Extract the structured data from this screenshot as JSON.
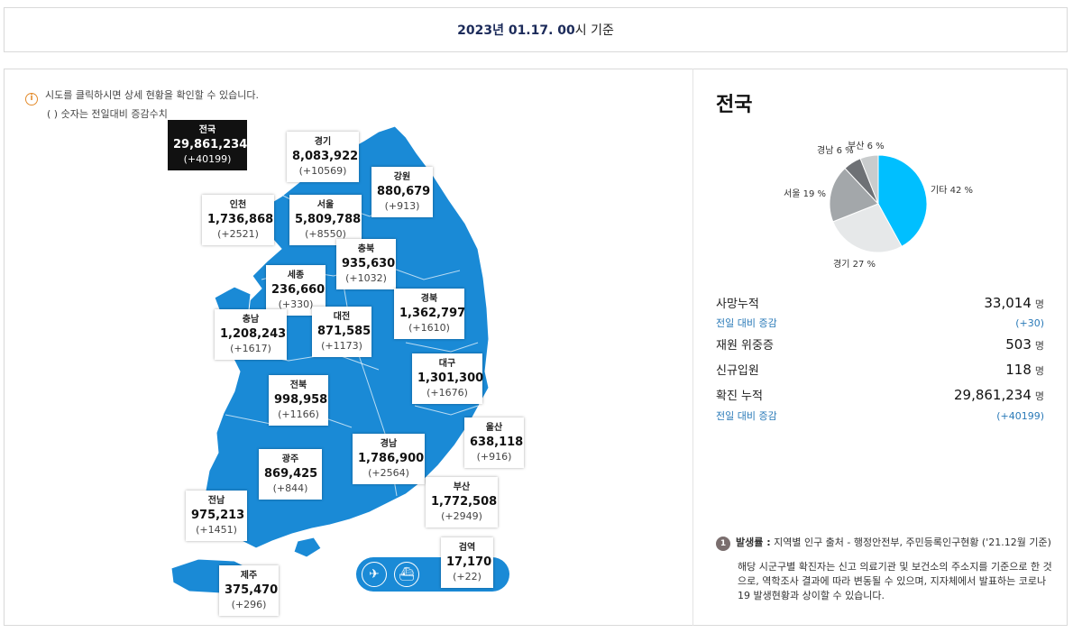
{
  "header": {
    "date_bold": "2023년 01.17. 00",
    "date_suffix": "시 기준"
  },
  "notice": {
    "line1": "시도를 클릭하시면 상세 현황을 확인할 수 있습니다.",
    "line2": "( ) 숫자는 전일대비 증감수치"
  },
  "regions": [
    {
      "id": "national",
      "name": "전국",
      "value": "29,861,234",
      "diff": "(+40199)"
    },
    {
      "id": "gyeonggi",
      "name": "경기",
      "value": "8,083,922",
      "diff": "(+10569)"
    },
    {
      "id": "gangwon",
      "name": "강원",
      "value": "880,679",
      "diff": "(+913)"
    },
    {
      "id": "incheon",
      "name": "인천",
      "value": "1,736,868",
      "diff": "(+2521)"
    },
    {
      "id": "seoul",
      "name": "서울",
      "value": "5,809,788",
      "diff": "(+8550)"
    },
    {
      "id": "chungbuk",
      "name": "충북",
      "value": "935,630",
      "diff": "(+1032)"
    },
    {
      "id": "sejong",
      "name": "세종",
      "value": "236,660",
      "diff": "(+330)"
    },
    {
      "id": "gyeongbuk",
      "name": "경북",
      "value": "1,362,797",
      "diff": "(+1610)"
    },
    {
      "id": "chungnam",
      "name": "충남",
      "value": "1,208,243",
      "diff": "(+1617)"
    },
    {
      "id": "daejeon",
      "name": "대전",
      "value": "871,585",
      "diff": "(+1173)"
    },
    {
      "id": "daegu",
      "name": "대구",
      "value": "1,301,300",
      "diff": "(+1676)"
    },
    {
      "id": "jeonbuk",
      "name": "전북",
      "value": "998,958",
      "diff": "(+1166)"
    },
    {
      "id": "ulsan",
      "name": "울산",
      "value": "638,118",
      "diff": "(+916)"
    },
    {
      "id": "gyeongnam",
      "name": "경남",
      "value": "1,786,900",
      "diff": "(+2564)"
    },
    {
      "id": "gwangju",
      "name": "광주",
      "value": "869,425",
      "diff": "(+844)"
    },
    {
      "id": "busan",
      "name": "부산",
      "value": "1,772,508",
      "diff": "(+2949)"
    },
    {
      "id": "jeonnam",
      "name": "전남",
      "value": "975,213",
      "diff": "(+1451)"
    },
    {
      "id": "quarantine",
      "name": "검역",
      "value": "17,170",
      "diff": "(+22)"
    },
    {
      "id": "jeju",
      "name": "제주",
      "value": "375,470",
      "diff": "(+296)"
    }
  ],
  "summary": {
    "title": "전국",
    "pie": [
      {
        "label": "기타 42 %",
        "percent": 42,
        "color": "#00bfff"
      },
      {
        "label": "경기 27 %",
        "percent": 27,
        "color": "#e6e8e9"
      },
      {
        "label": "서울 19 %",
        "percent": 19,
        "color": "#a3a7aa"
      },
      {
        "label": "경남 6 %",
        "percent": 6,
        "color": "#6e7175"
      },
      {
        "label": "부산 6 %",
        "percent": 6,
        "color": "#c9cccd"
      }
    ],
    "stats": {
      "deaths_label": "사망누적",
      "deaths_value": "33,014",
      "unit": "명",
      "deaths_diff_label": "전일 대비 증감",
      "deaths_diff": "(+30)",
      "critical_label": "재원 위중증",
      "critical_value": "503",
      "admit_label": "신규입원",
      "admit_value": "118",
      "confirmed_label": "확진 누적",
      "confirmed_value": "29,861,234",
      "confirmed_diff_label": "전일 대비 증감",
      "confirmed_diff": "(+40199)"
    }
  },
  "footnote": {
    "badge": "1",
    "title": "발생률 :",
    "source": " 지역별 인구 출처 - 행정안전부, 주민등록인구현황 ('21.12월 기준)",
    "desc": "해당 시군구별 확진자는 신고 의료기관 및 보건소의 주소지를 기준으로 한 것으로, 역학조사 결과에 따라 변동될 수 있으며, 지자체에서 발표하는 코로나19 발생현황과 상이할 수 있습니다."
  },
  "icons": {
    "info": "info-icon",
    "airplane": "airplane-icon",
    "ship": "ship-icon"
  }
}
